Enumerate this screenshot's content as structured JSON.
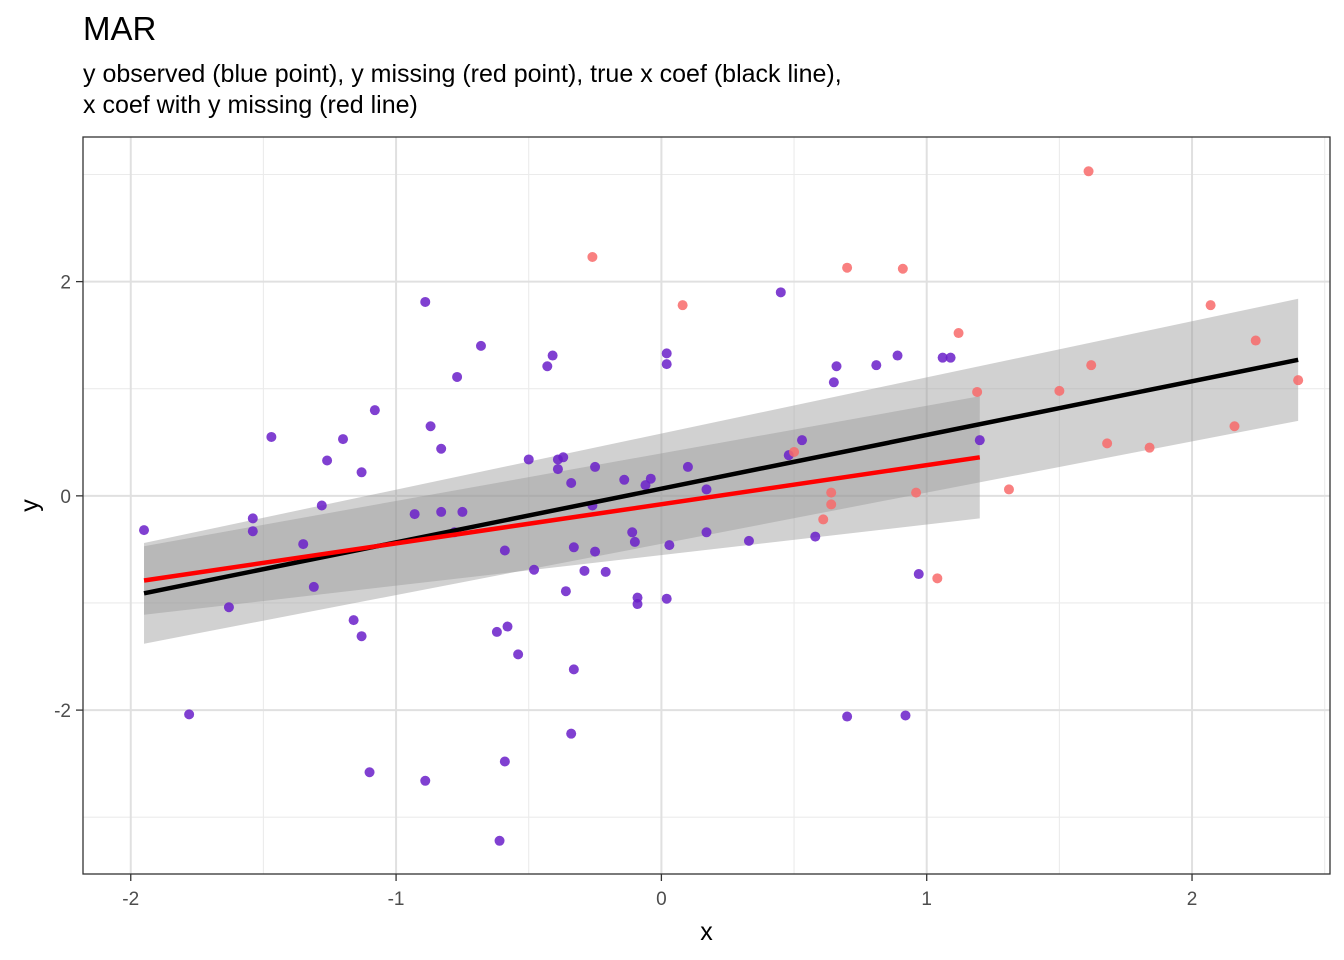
{
  "chart_data": {
    "type": "scatter",
    "title": "MAR",
    "subtitle": [
      "y observed (blue point), y missing (red point), true x coef (black line),",
      "x coef with y missing (red line)"
    ],
    "xlabel": "x",
    "ylabel": "y",
    "xlim": [
      -2.18,
      2.52
    ],
    "ylim": [
      -3.53,
      3.35
    ],
    "x_ticks": [
      -2,
      -1,
      0,
      1,
      2
    ],
    "y_ticks": [
      -2,
      0,
      2
    ],
    "x_tick_labels": [
      "-2",
      "-1",
      "0",
      "1",
      "2"
    ],
    "y_tick_labels": [
      "-2",
      "0",
      "2"
    ],
    "grid": true,
    "legend": "none",
    "colors": {
      "observed": "#6a1fc9",
      "missing": "#f86a6a",
      "true_line": "#000000",
      "missing_line": "#ff0000",
      "ribbon": "#999999"
    },
    "series": [
      {
        "name": "y observed (blue point)",
        "points": [
          [
            -1.95,
            -0.32
          ],
          [
            -1.78,
            -2.04
          ],
          [
            -1.63,
            -1.04
          ],
          [
            -1.54,
            -0.21
          ],
          [
            -1.54,
            -0.33
          ],
          [
            -1.47,
            0.55
          ],
          [
            -1.35,
            -0.45
          ],
          [
            -1.31,
            -0.85
          ],
          [
            -1.28,
            -0.09
          ],
          [
            -1.26,
            0.33
          ],
          [
            -1.2,
            0.53
          ],
          [
            -1.16,
            -1.16
          ],
          [
            -1.13,
            -1.31
          ],
          [
            -1.13,
            0.22
          ],
          [
            -1.1,
            -2.58
          ],
          [
            -1.08,
            0.8
          ],
          [
            -0.93,
            -0.17
          ],
          [
            -0.89,
            1.81
          ],
          [
            -0.89,
            -2.66
          ],
          [
            -0.87,
            0.65
          ],
          [
            -0.83,
            0.44
          ],
          [
            -0.83,
            -0.15
          ],
          [
            -0.78,
            -0.34
          ],
          [
            -0.77,
            1.11
          ],
          [
            -0.75,
            -0.15
          ],
          [
            -0.68,
            1.4
          ],
          [
            -0.62,
            -1.27
          ],
          [
            -0.61,
            -3.22
          ],
          [
            -0.59,
            -2.48
          ],
          [
            -0.59,
            -0.51
          ],
          [
            -0.58,
            -1.22
          ],
          [
            -0.54,
            -1.48
          ],
          [
            -0.5,
            0.34
          ],
          [
            -0.48,
            -0.69
          ],
          [
            -0.43,
            1.21
          ],
          [
            -0.41,
            1.31
          ],
          [
            -0.39,
            0.34
          ],
          [
            -0.39,
            0.25
          ],
          [
            -0.37,
            0.36
          ],
          [
            -0.36,
            -0.89
          ],
          [
            -0.34,
            0.12
          ],
          [
            -0.34,
            -2.22
          ],
          [
            -0.33,
            -0.48
          ],
          [
            -0.33,
            -1.62
          ],
          [
            -0.29,
            -0.7
          ],
          [
            -0.26,
            -0.09
          ],
          [
            -0.25,
            -0.52
          ],
          [
            -0.25,
            0.27
          ],
          [
            -0.21,
            -0.71
          ],
          [
            -0.14,
            0.15
          ],
          [
            -0.11,
            -0.34
          ],
          [
            -0.1,
            -0.43
          ],
          [
            -0.09,
            -0.95
          ],
          [
            -0.09,
            -1.01
          ],
          [
            -0.06,
            0.1
          ],
          [
            -0.04,
            0.16
          ],
          [
            0.02,
            1.33
          ],
          [
            0.02,
            1.23
          ],
          [
            0.03,
            -0.46
          ],
          [
            0.02,
            -0.96
          ],
          [
            0.1,
            0.27
          ],
          [
            0.17,
            -0.34
          ],
          [
            0.17,
            0.06
          ],
          [
            0.33,
            -0.42
          ],
          [
            0.45,
            1.9
          ],
          [
            0.48,
            0.38
          ],
          [
            0.53,
            0.52
          ],
          [
            0.58,
            -0.38
          ],
          [
            0.65,
            1.06
          ],
          [
            0.66,
            1.21
          ],
          [
            0.7,
            -2.06
          ],
          [
            0.81,
            1.22
          ],
          [
            0.89,
            1.31
          ],
          [
            0.92,
            -2.05
          ],
          [
            0.97,
            -0.73
          ],
          [
            1.06,
            1.29
          ],
          [
            1.09,
            1.29
          ],
          [
            1.2,
            0.52
          ]
        ]
      },
      {
        "name": "y missing (red point)",
        "points": [
          [
            -0.26,
            2.23
          ],
          [
            0.08,
            1.78
          ],
          [
            0.5,
            0.41
          ],
          [
            0.61,
            -0.22
          ],
          [
            0.64,
            0.03
          ],
          [
            0.64,
            -0.08
          ],
          [
            0.7,
            2.13
          ],
          [
            0.91,
            2.12
          ],
          [
            0.96,
            0.03
          ],
          [
            1.04,
            -0.77
          ],
          [
            1.12,
            1.52
          ],
          [
            1.19,
            0.97
          ],
          [
            1.31,
            0.06
          ],
          [
            1.5,
            0.98
          ],
          [
            1.61,
            3.03
          ],
          [
            1.62,
            1.22
          ],
          [
            1.68,
            0.49
          ],
          [
            1.84,
            0.45
          ],
          [
            2.07,
            1.78
          ],
          [
            2.16,
            0.65
          ],
          [
            2.24,
            1.45
          ],
          [
            2.4,
            1.08
          ]
        ]
      }
    ],
    "fits": [
      {
        "name": "true x coef (black line)",
        "x_range": [
          -1.95,
          2.4
        ],
        "y_at_ends": [
          -0.91,
          1.27
        ],
        "band_lower": [
          -1.38,
          0.7
        ],
        "band_upper": [
          -0.44,
          1.84
        ]
      },
      {
        "name": "x coef with y missing (red line)",
        "x_range": [
          -1.95,
          1.2
        ],
        "y_at_ends": [
          -0.79,
          0.36
        ],
        "band_lower": [
          -1.11,
          -0.21
        ],
        "band_upper": [
          -0.47,
          0.93
        ]
      }
    ]
  }
}
